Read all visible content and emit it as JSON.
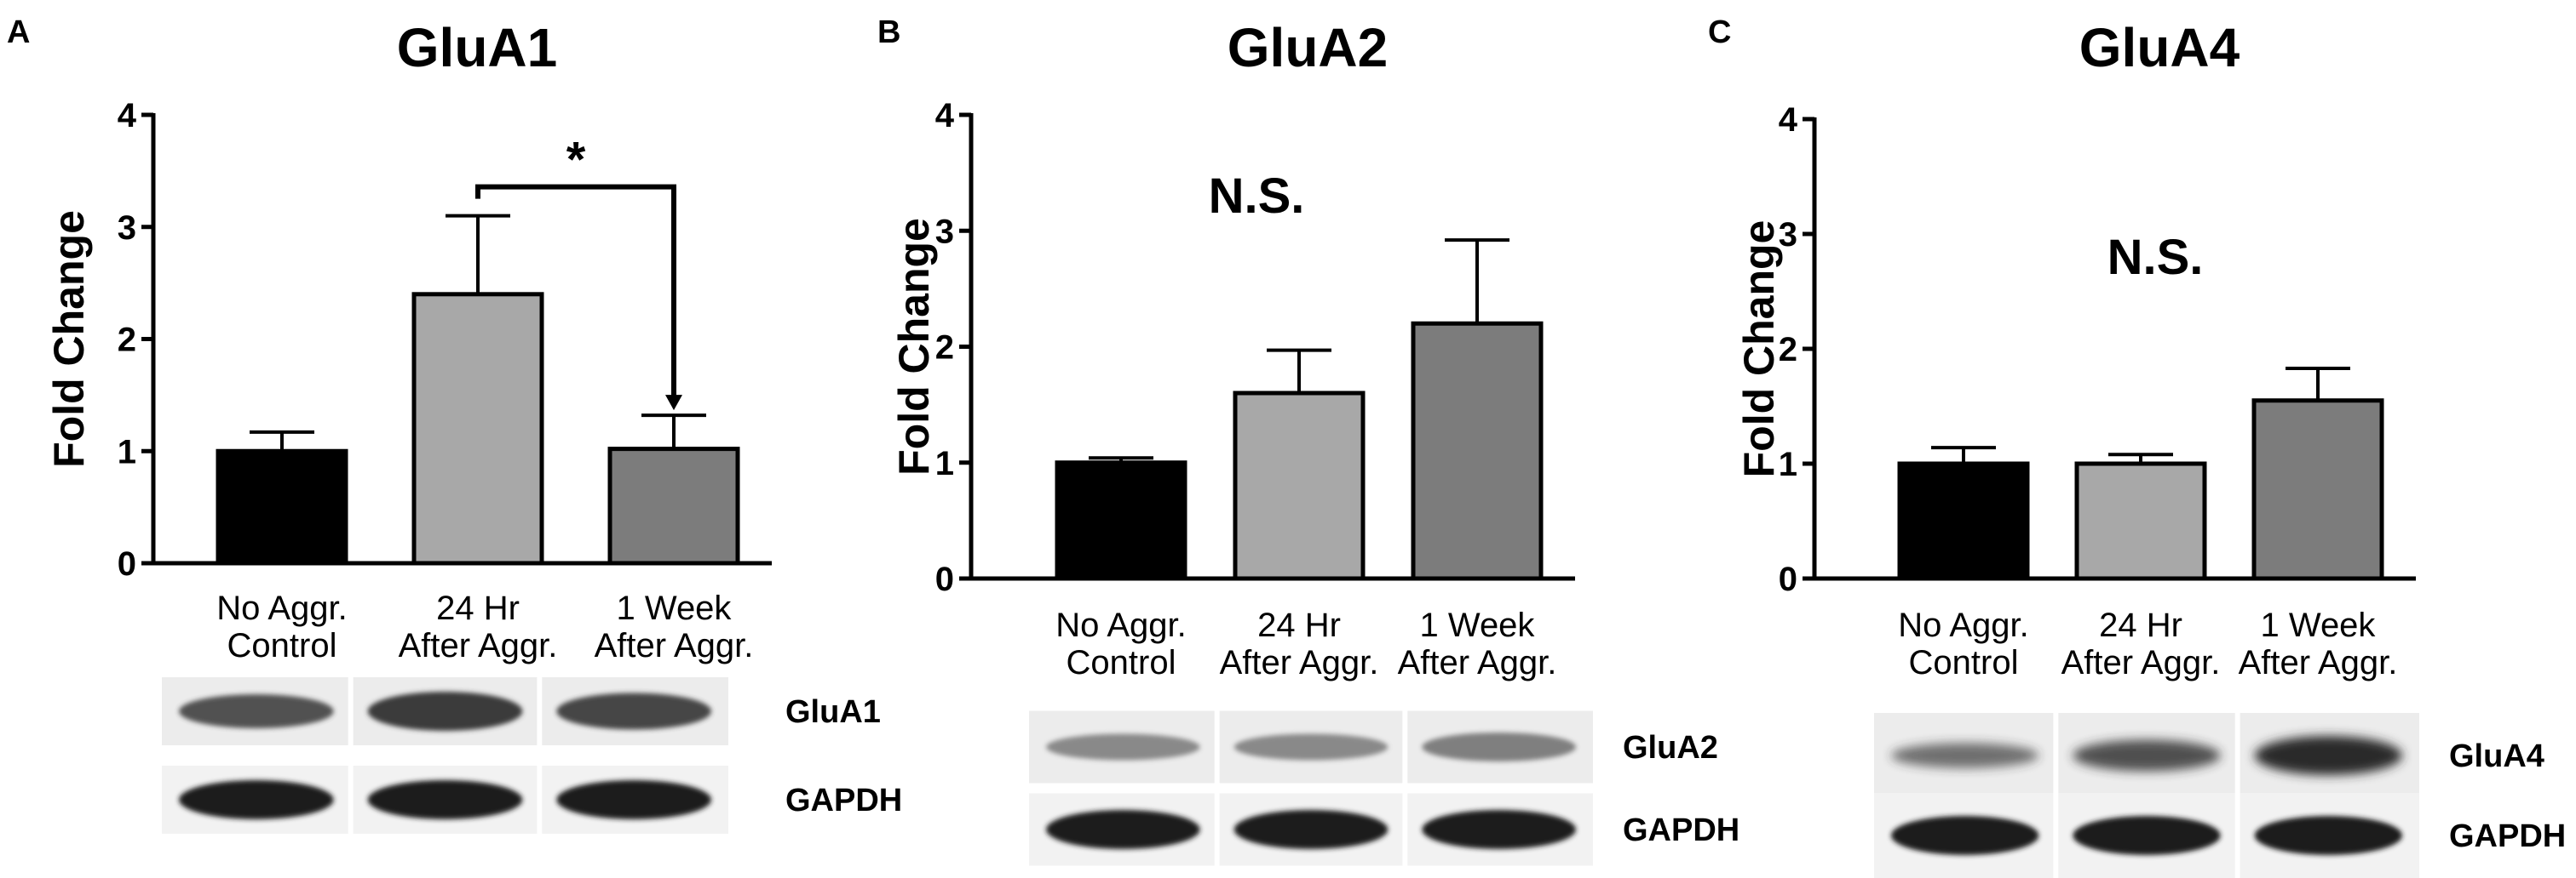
{
  "chart_data": [
    {
      "type": "bar",
      "panel": "A",
      "title": "GluA1",
      "xlabel": "",
      "ylabel": "Fold Change",
      "ylim": [
        0,
        4
      ],
      "yticks": [
        "0",
        "1",
        "2",
        "3",
        "4"
      ],
      "categories": [
        "No Aggr.\nControl",
        "24 Hr\nAfter Aggr.",
        "1 Week\nAfter Aggr."
      ],
      "values": [
        1.0,
        2.4,
        1.02
      ],
      "errors": [
        0.17,
        0.7,
        0.3
      ],
      "bar_colors": [
        "#000000",
        "#a8a8a8",
        "#7c7c7c"
      ],
      "annotation": "*",
      "significance_bracket": [
        1,
        2
      ],
      "blot_labels": [
        "GluA1",
        "GAPDH"
      ]
    },
    {
      "type": "bar",
      "panel": "B",
      "title": "GluA2",
      "xlabel": "",
      "ylabel": "Fold Change",
      "ylim": [
        0,
        4
      ],
      "yticks": [
        "0",
        "1",
        "2",
        "3",
        "4"
      ],
      "categories": [
        "No Aggr.\nControl",
        "24 Hr\nAfter Aggr.",
        "1 Week\nAfter Aggr."
      ],
      "values": [
        1.0,
        1.6,
        2.2
      ],
      "errors": [
        0.04,
        0.37,
        0.72
      ],
      "bar_colors": [
        "#000000",
        "#a8a8a8",
        "#7c7c7c"
      ],
      "annotation": "N.S.",
      "blot_labels": [
        "GluA2",
        "GAPDH"
      ]
    },
    {
      "type": "bar",
      "panel": "C",
      "title": "GluA4",
      "xlabel": "",
      "ylabel": "Fold Change",
      "ylim": [
        0,
        4
      ],
      "yticks": [
        "0",
        "1",
        "2",
        "3",
        "4"
      ],
      "categories": [
        "No Aggr.\nControl",
        "24 Hr\nAfter Aggr.",
        "1 Week\nAfter Aggr."
      ],
      "values": [
        1.0,
        1.0,
        1.55
      ],
      "errors": [
        0.14,
        0.08,
        0.28
      ],
      "bar_colors": [
        "#000000",
        "#a8a8a8",
        "#7c7c7c"
      ],
      "annotation": "N.S.",
      "blot_labels": [
        "GluA4",
        "GAPDH"
      ]
    }
  ]
}
